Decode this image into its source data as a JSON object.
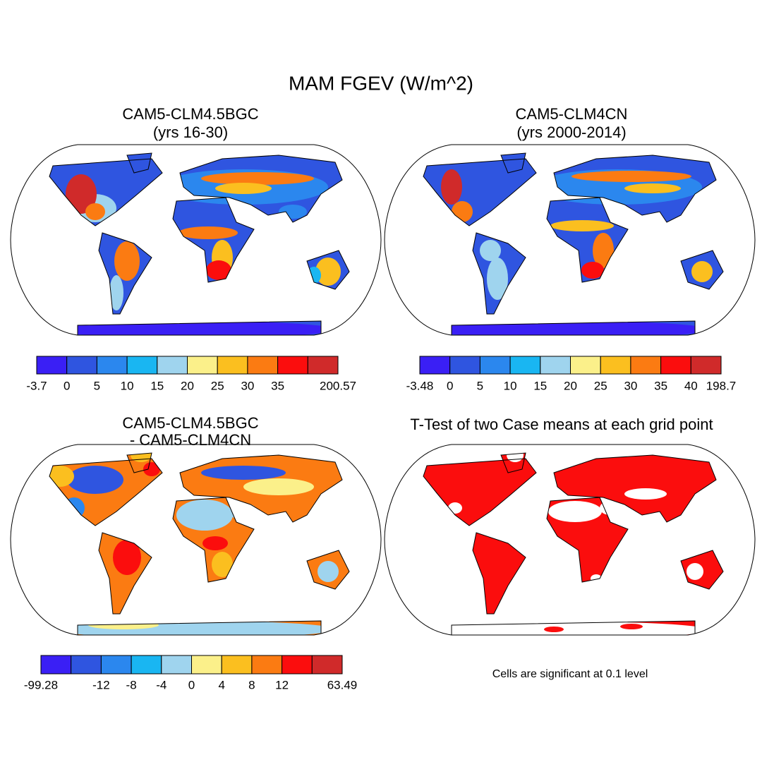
{
  "title": "MAM FGEV (W/m^2)",
  "panels": [
    {
      "title": [
        "CAM5-CLM4.5BGC",
        "(yrs 16-30)"
      ],
      "colorbar": {
        "colors": [
          "#3a1ff5",
          "#2f55e0",
          "#2b87ee",
          "#19b6f2",
          "#9fd4ee",
          "#fbf08a",
          "#fbbf1f",
          "#fb7b12",
          "#fb0d0d",
          "#d02a2a"
        ],
        "labels": [
          "-3.7",
          "0",
          "5",
          "10",
          "15",
          "20",
          "25",
          "30",
          "35",
          null,
          "200.57"
        ]
      }
    },
    {
      "title": [
        "CAM5-CLM4CN",
        "(yrs 2000-2014)"
      ],
      "colorbar": {
        "colors": [
          "#3a1ff5",
          "#2f55e0",
          "#2b87ee",
          "#19b6f2",
          "#9fd4ee",
          "#fbf08a",
          "#fbbf1f",
          "#fb7b12",
          "#fb0d0d",
          "#d02a2a"
        ],
        "labels": [
          "-3.48",
          "0",
          "5",
          "10",
          "15",
          "20",
          "25",
          "30",
          "35",
          "40",
          "198.7"
        ]
      }
    },
    {
      "title": [
        "CAM5-CLM4.5BGC",
        "- CAM5-CLM4CN"
      ],
      "colorbar": {
        "colors": [
          "#3a1ff5",
          "#2f55e0",
          "#2b87ee",
          "#19b6f2",
          "#9fd4ee",
          "#fbf08a",
          "#fbbf1f",
          "#fb7b12",
          "#fb0d0d",
          "#d02a2a"
        ],
        "labels": [
          "-99.28",
          null,
          "-12",
          "-8",
          "-4",
          "0",
          "4",
          "8",
          "12",
          null,
          "63.49"
        ]
      }
    },
    {
      "title": [
        "T-Test of two Case means at each grid point"
      ],
      "note": "Cells are significant at 0.1 level"
    }
  ]
}
